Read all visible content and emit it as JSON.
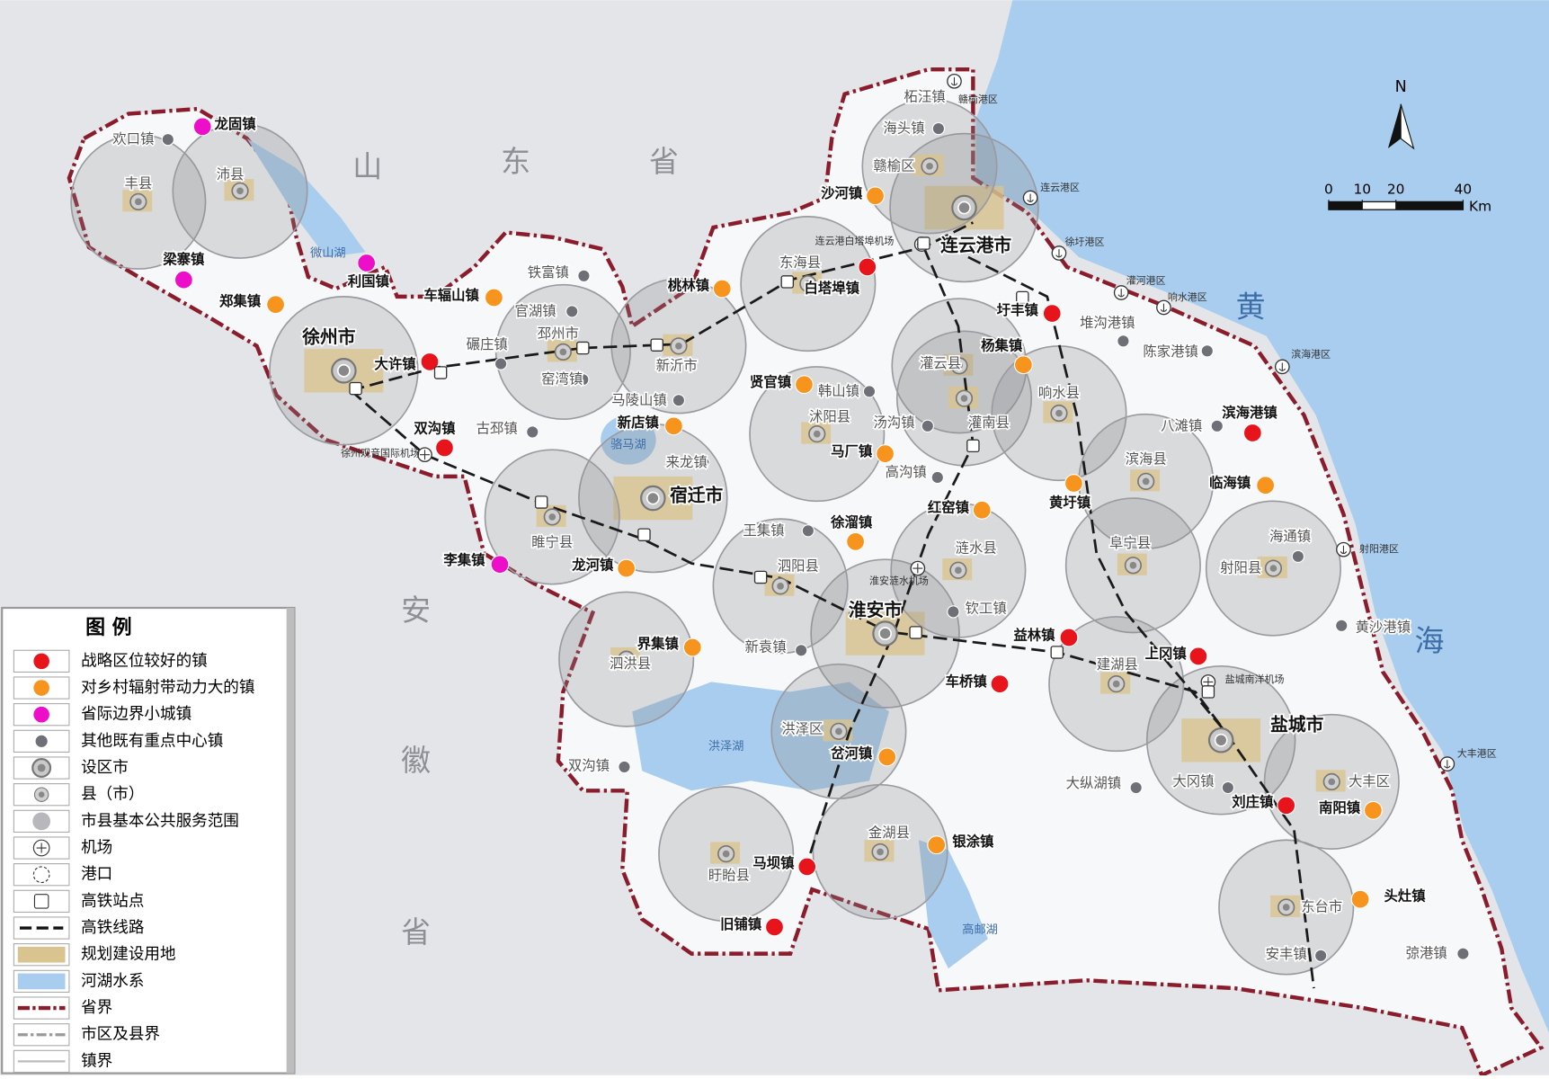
{
  "map": {
    "province_labels": [
      "山",
      "东",
      "省",
      "安",
      "徽",
      "省",
      "黄",
      "海"
    ],
    "lakes": [
      "微山湖",
      "骆马湖",
      "洪泽湖",
      "高邮湖"
    ],
    "strategic_towns": [
      "白塔埠镇",
      "大许镇",
      "双沟镇",
      "圩丰镇",
      "滨海港镇",
      "益林镇",
      "上冈镇",
      "车桥镇",
      "刘庄镇",
      "马坝镇",
      "旧铺镇"
    ],
    "radiating_towns": [
      "沙河镇",
      "桃林镇",
      "车辐山镇",
      "郑集镇",
      "杨集镇",
      "贤官镇",
      "新店镇",
      "马厂镇",
      "黄圩镇",
      "临海镇",
      "红窑镇",
      "徐溜镇",
      "龙河镇",
      "界集镇",
      "岔河镇",
      "银涂镇",
      "南阳镇",
      "头灶镇"
    ],
    "border_towns": [
      "龙固镇",
      "梁寨镇",
      "利国镇",
      "李集镇"
    ],
    "key_towns": [
      "欢口镇",
      "柘汪镇",
      "海头镇",
      "铁富镇",
      "官湖镇",
      "碾庄镇",
      "窑湾镇",
      "马陵山镇",
      "古邳镇",
      "韩山镇",
      "堆沟港镇",
      "陈家港镇",
      "汤沟镇",
      "来龙镇",
      "高沟镇",
      "八滩镇",
      "王集镇",
      "海通镇",
      "钦工镇",
      "新袁镇",
      "黄沙港镇",
      "双沟镇",
      "大纵湖镇",
      "大冈镇",
      "安丰镇",
      "弶港镇"
    ],
    "prefecture_cities": [
      "徐州市",
      "宿迁市",
      "连云港市",
      "淮安市",
      "盐城市"
    ],
    "counties": [
      "丰县",
      "沛县",
      "赣榆区",
      "东海县",
      "邳州市",
      "新沂市",
      "沭阳县",
      "灌云县",
      "灌南县",
      "响水县",
      "滨海县",
      "阜宁县",
      "射阳县",
      "睢宁县",
      "泗阳县",
      "涟水县",
      "泗洪县",
      "洪泽区",
      "建湖县",
      "金湖县",
      "盱眙县",
      "东台市",
      "大丰区"
    ],
    "ports": [
      "赣榆港区",
      "连云港区",
      "徐圩港区",
      "灌河港区",
      "响水港区",
      "滨海港区",
      "射阳港区",
      "大丰港区"
    ],
    "airports": [
      "连云港白塔埠机场",
      "徐州观音国际机场",
      "淮安涟水机场",
      "盐城南洋机场"
    ],
    "north": "N",
    "scale": {
      "ticks": [
        0,
        10,
        20,
        40
      ],
      "unit": "Km"
    }
  },
  "legend": {
    "title": "图 例",
    "items": [
      "战略区位较好的镇",
      "对乡村辐射带动力大的镇",
      "省际边界小城镇",
      "其他既有重点中心镇",
      "设区市",
      "县（市）",
      "市县基本公共服务范围",
      "机场",
      "港口",
      "高铁站点",
      "高铁线路",
      "规划建设用地",
      "河湖水系",
      "省界",
      "市区及县界",
      "镇界"
    ]
  }
}
